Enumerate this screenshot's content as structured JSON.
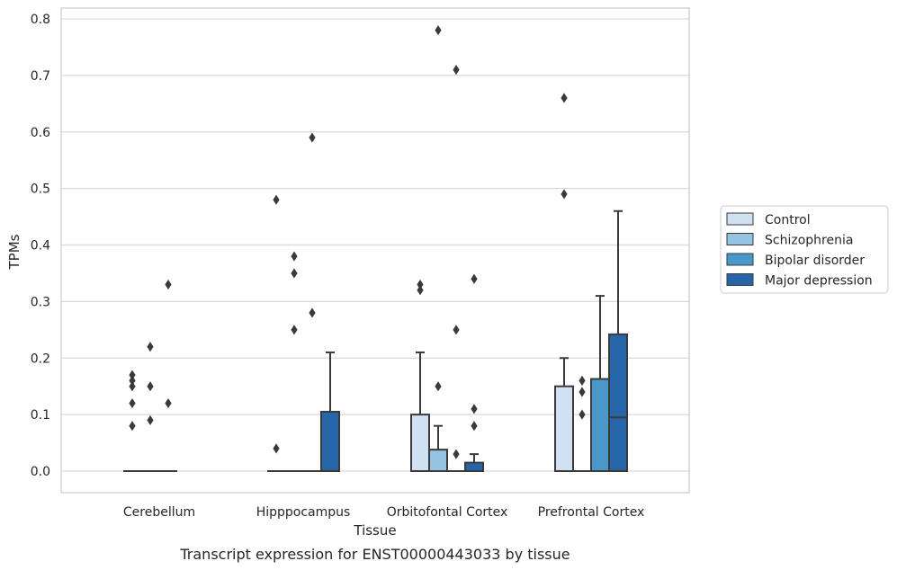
{
  "caption": "Transcript expression for ENST00000443033 by tissue",
  "chart_data": {
    "type": "box",
    "xlabel": "Tissue",
    "ylabel": "TPMs",
    "ylim": [
      -0.04,
      0.82
    ],
    "yticks": [
      0.0,
      0.1,
      0.2,
      0.3,
      0.4,
      0.5,
      0.6,
      0.7,
      0.8
    ],
    "ytick_labels": [
      "0.0",
      "0.1",
      "0.2",
      "0.3",
      "0.4",
      "0.5",
      "0.6",
      "0.7",
      "0.8"
    ],
    "grid": "horizontal",
    "legend_position": "right",
    "categories": [
      "Cerebellum",
      "Hipppocampus",
      "Orbitofontal Cortex",
      "Prefrontal Cortex"
    ],
    "series": [
      {
        "name": "Control",
        "color": "#d0e1f2",
        "boxes": [
          {
            "q1": 0,
            "median": 0,
            "q3": 0,
            "whisker_low": 0,
            "whisker_high": 0,
            "outliers": [
              0.15,
              0.16,
              0.08,
              0.12,
              0.17
            ]
          },
          {
            "q1": 0,
            "median": 0,
            "q3": 0,
            "whisker_low": 0,
            "whisker_high": 0,
            "outliers": [
              0.04,
              0.48
            ]
          },
          {
            "q1": 0,
            "median": 0,
            "q3": 0.1,
            "whisker_low": 0,
            "whisker_high": 0.21,
            "outliers": [
              0.32,
              0.33
            ]
          },
          {
            "q1": 0,
            "median": 0,
            "q3": 0.15,
            "whisker_low": 0,
            "whisker_high": 0.2,
            "outliers": [
              0.49,
              0.66
            ]
          }
        ]
      },
      {
        "name": "Schizophrenia",
        "color": "#94c4df",
        "boxes": [
          {
            "q1": 0,
            "median": 0,
            "q3": 0,
            "whisker_low": 0,
            "whisker_high": 0,
            "outliers": [
              0.09,
              0.15,
              0.22
            ]
          },
          {
            "q1": 0,
            "median": 0,
            "q3": 0,
            "whisker_low": 0,
            "whisker_high": 0,
            "outliers": [
              0.25,
              0.35,
              0.38
            ]
          },
          {
            "q1": 0,
            "median": 0,
            "q3": 0.038,
            "whisker_low": 0,
            "whisker_high": 0.08,
            "outliers": [
              0.15,
              0.78
            ]
          },
          {
            "q1": 0,
            "median": 0,
            "q3": 0,
            "whisker_low": 0,
            "whisker_high": 0,
            "outliers": [
              0.1,
              0.14,
              0.16
            ]
          }
        ]
      },
      {
        "name": "Bipolar disorder",
        "color": "#4a98c9",
        "boxes": [
          {
            "q1": 0,
            "median": 0,
            "q3": 0,
            "whisker_low": 0,
            "whisker_high": 0,
            "outliers": [
              0.12,
              0.33
            ]
          },
          {
            "q1": 0,
            "median": 0,
            "q3": 0,
            "whisker_low": 0,
            "whisker_high": 0,
            "outliers": [
              0.28,
              0.59
            ]
          },
          {
            "q1": 0,
            "median": 0,
            "q3": 0,
            "whisker_low": 0,
            "whisker_high": 0,
            "outliers": [
              0.03,
              0.25,
              0.71
            ]
          },
          {
            "q1": 0,
            "median": 0,
            "q3": 0.163,
            "whisker_low": 0,
            "whisker_high": 0.31,
            "outliers": []
          }
        ]
      },
      {
        "name": "Major depression",
        "color": "#2666a8",
        "boxes": [
          null,
          {
            "q1": 0,
            "median": 0,
            "q3": 0.105,
            "whisker_low": 0,
            "whisker_high": 0.21,
            "outliers": []
          },
          {
            "q1": 0,
            "median": 0,
            "q3": 0.015,
            "whisker_low": 0,
            "whisker_high": 0.03,
            "outliers": [
              0.08,
              0.11,
              0.34
            ]
          },
          {
            "q1": 0,
            "median": 0.095,
            "q3": 0.242,
            "whisker_low": 0,
            "whisker_high": 0.46,
            "outliers": []
          }
        ]
      }
    ]
  }
}
